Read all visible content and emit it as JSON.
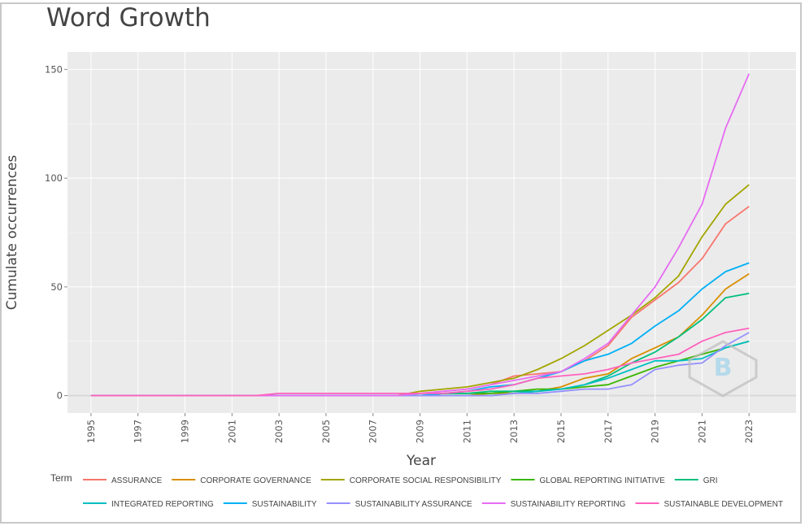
{
  "page_title": "Word Growth",
  "chart_data": {
    "type": "line",
    "title": "Word Growth",
    "xlabel": "Year",
    "ylabel": "Cumulate occurrences",
    "xlim": [
      1994,
      2025
    ],
    "ylim": [
      -8,
      158
    ],
    "x_ticks": [
      1995,
      1997,
      1999,
      2001,
      2003,
      2005,
      2007,
      2009,
      2011,
      2013,
      2015,
      2017,
      2019,
      2021,
      2023
    ],
    "y_ticks": [
      0,
      50,
      100,
      150
    ],
    "grid": true,
    "legend_title": "Term",
    "legend_position": "bottom",
    "x": [
      1995,
      1996,
      1997,
      1998,
      1999,
      2000,
      2001,
      2002,
      2003,
      2004,
      2005,
      2006,
      2007,
      2008,
      2009,
      2010,
      2011,
      2012,
      2013,
      2014,
      2015,
      2016,
      2017,
      2018,
      2019,
      2020,
      2021,
      2022,
      2023
    ],
    "series": [
      {
        "name": "ASSURANCE",
        "color": "#F8766D",
        "values": [
          0,
          0,
          0,
          0,
          0,
          0,
          0,
          0,
          0,
          0,
          0,
          0,
          0,
          0,
          1,
          2,
          3,
          5,
          9,
          10,
          11,
          16,
          23,
          36,
          44,
          52,
          63,
          79,
          87
        ]
      },
      {
        "name": "CORPORATE GOVERNANCE",
        "color": "#D89000",
        "values": [
          0,
          0,
          0,
          0,
          0,
          0,
          0,
          0,
          0,
          0,
          0,
          0,
          0,
          0,
          0,
          0,
          0,
          1,
          1,
          2,
          4,
          8,
          10,
          17,
          22,
          27,
          37,
          49,
          56
        ]
      },
      {
        "name": "CORPORATE SOCIAL RESPONSIBILITY",
        "color": "#A3A500",
        "values": [
          0,
          0,
          0,
          0,
          0,
          0,
          0,
          0,
          0,
          0,
          0,
          0,
          0,
          0,
          2,
          3,
          4,
          6,
          8,
          12,
          17,
          23,
          30,
          37,
          45,
          55,
          73,
          88,
          97
        ]
      },
      {
        "name": "GLOBAL REPORTING INITIATIVE",
        "color": "#39B600",
        "values": [
          0,
          0,
          0,
          0,
          0,
          0,
          0,
          0,
          0,
          0,
          0,
          0,
          0,
          0,
          0,
          1,
          1,
          1,
          2,
          3,
          3,
          4,
          5,
          9,
          13,
          16,
          19,
          22,
          25
        ]
      },
      {
        "name": "GRI",
        "color": "#00BF7D",
        "values": [
          0,
          0,
          0,
          0,
          0,
          0,
          0,
          0,
          0,
          0,
          0,
          0,
          0,
          0,
          0,
          1,
          1,
          2,
          2,
          2,
          3,
          5,
          9,
          15,
          20,
          27,
          35,
          45,
          47
        ]
      },
      {
        "name": "INTEGRATED REPORTING",
        "color": "#00BFC4",
        "values": [
          0,
          0,
          0,
          0,
          0,
          0,
          0,
          0,
          0,
          0,
          0,
          0,
          0,
          0,
          0,
          0,
          0,
          0,
          1,
          2,
          3,
          5,
          8,
          12,
          16,
          16,
          17,
          22,
          25
        ]
      },
      {
        "name": "SUSTAINABILITY",
        "color": "#00B0F6",
        "values": [
          0,
          0,
          0,
          0,
          0,
          0,
          0,
          0,
          0,
          0,
          0,
          0,
          0,
          0,
          0,
          1,
          2,
          4,
          5,
          8,
          11,
          16,
          19,
          24,
          32,
          39,
          49,
          57,
          61
        ]
      },
      {
        "name": "SUSTAINABILITY ASSURANCE",
        "color": "#9590FF",
        "values": [
          0,
          0,
          0,
          0,
          0,
          0,
          0,
          0,
          0,
          0,
          0,
          0,
          0,
          0,
          0,
          0,
          0,
          0,
          1,
          1,
          2,
          3,
          3,
          5,
          12,
          14,
          15,
          23,
          29
        ]
      },
      {
        "name": "SUSTAINABILITY REPORTING",
        "color": "#E76BF3",
        "values": [
          0,
          0,
          0,
          0,
          0,
          0,
          0,
          0,
          0,
          0,
          0,
          0,
          0,
          0,
          1,
          2,
          3,
          5,
          7,
          9,
          11,
          17,
          24,
          37,
          50,
          68,
          88,
          123,
          148
        ]
      },
      {
        "name": "SUSTAINABLE DEVELOPMENT",
        "color": "#FF62BC",
        "values": [
          0,
          0,
          0,
          0,
          0,
          0,
          0,
          0,
          1,
          1,
          1,
          1,
          1,
          1,
          1,
          1,
          2,
          3,
          5,
          8,
          9,
          10,
          12,
          15,
          17,
          19,
          25,
          29,
          31
        ]
      }
    ]
  }
}
